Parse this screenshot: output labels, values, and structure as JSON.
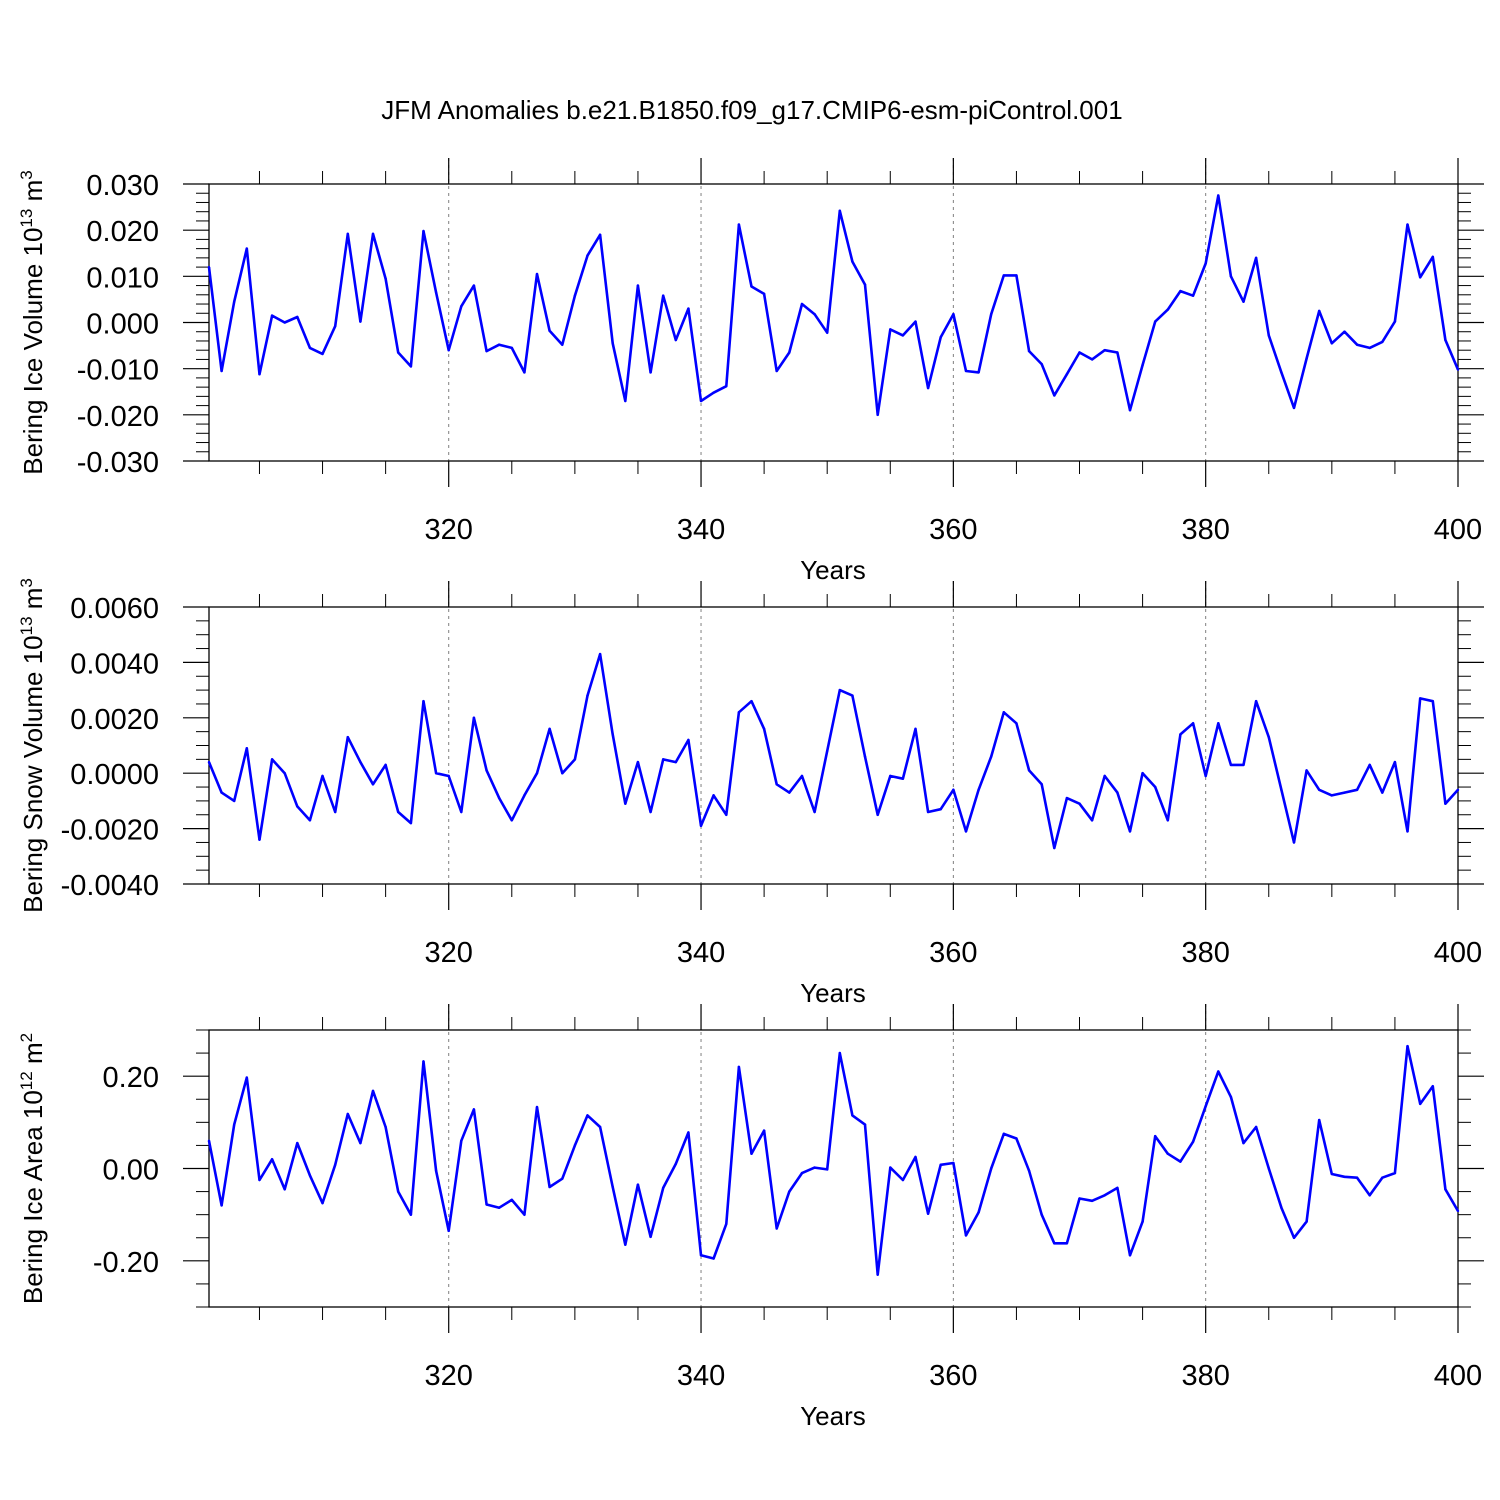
{
  "title": "JFM Anomalies b.e21.B1850.f09_g17.CMIP6-esm-piControl.001",
  "colors": {
    "series": "#0000ff",
    "axes": "#000000",
    "grid": "#808080"
  },
  "chart_data": [
    {
      "type": "line",
      "ylabel": "Bering Ice Volume",
      "ylabel_unit": "10",
      "ylabel_exp": "13",
      "ylabel_unit2": "m",
      "ylabel_exp2": "3",
      "xlabel": "Years",
      "xlim": [
        301,
        400
      ],
      "ylim": [
        -0.03,
        0.03
      ],
      "x_ticks": [
        320,
        340,
        360,
        380,
        400
      ],
      "x_tick_labels": [
        "320",
        "340",
        "360",
        "380",
        "400"
      ],
      "y_ticks": [
        -0.03,
        -0.02,
        -0.01,
        0.0,
        0.01,
        0.02,
        0.03
      ],
      "y_tick_labels": [
        "-0.030",
        "-0.020",
        "-0.010",
        "0.000",
        "0.010",
        "0.020",
        "0.030"
      ],
      "grid_x": [
        320,
        340,
        360,
        380
      ],
      "x_start": 301,
      "values": [
        0.012,
        -0.0105,
        0.0045,
        0.016,
        -0.0112,
        0.0015,
        0.0,
        0.0012,
        -0.0055,
        -0.0068,
        -0.0008,
        0.0192,
        0.0002,
        0.0192,
        0.0095,
        -0.0065,
        -0.0095,
        0.0198,
        0.0065,
        -0.006,
        0.0035,
        0.008,
        -0.0062,
        -0.0048,
        -0.0055,
        -0.0108,
        0.0105,
        -0.0018,
        -0.0048,
        0.0058,
        0.0145,
        0.019,
        -0.0045,
        -0.017,
        0.008,
        -0.0108,
        0.0058,
        -0.0038,
        0.003,
        -0.017,
        -0.0152,
        -0.0138,
        0.0212,
        0.0078,
        0.0062,
        -0.0105,
        -0.0065,
        0.004,
        0.0018,
        -0.0022,
        0.0242,
        0.0132,
        0.0082,
        -0.02,
        -0.0015,
        -0.0028,
        0.0002,
        -0.0142,
        -0.0032,
        0.0018,
        -0.0105,
        -0.0108,
        0.0018,
        0.0102,
        0.0102,
        -0.0062,
        -0.009,
        -0.0158,
        -0.0112,
        -0.0065,
        -0.008,
        -0.006,
        -0.0065,
        -0.019,
        -0.0092,
        0.0002,
        0.0028,
        0.0068,
        0.0058,
        0.0128,
        0.0275,
        0.01,
        0.0045,
        0.014,
        -0.0028,
        -0.0108,
        -0.0185,
        -0.0078,
        0.0025,
        -0.0045,
        -0.002,
        -0.0048,
        -0.0055,
        -0.0042,
        0.0002,
        0.0212,
        0.0098,
        0.0142,
        -0.0038,
        -0.0102
      ]
    },
    {
      "type": "line",
      "ylabel": "Bering Snow Volume",
      "ylabel_unit": "10",
      "ylabel_exp": "13",
      "ylabel_unit2": "m",
      "ylabel_exp2": "3",
      "xlabel": "Years",
      "xlim": [
        301,
        400
      ],
      "ylim": [
        -0.004,
        0.006
      ],
      "x_ticks": [
        320,
        340,
        360,
        380,
        400
      ],
      "x_tick_labels": [
        "320",
        "340",
        "360",
        "380",
        "400"
      ],
      "y_ticks": [
        -0.004,
        -0.002,
        0.0,
        0.002,
        0.004,
        0.006
      ],
      "y_tick_labels": [
        "-0.0040",
        "-0.0020",
        "0.0000",
        "0.0020",
        "0.0040",
        "0.0060"
      ],
      "grid_x": [
        320,
        340,
        360,
        380
      ],
      "x_start": 301,
      "values": [
        0.0004,
        -0.0007,
        -0.001,
        0.0009,
        -0.0024,
        0.0005,
        0.0,
        -0.0012,
        -0.0017,
        -0.0001,
        -0.0014,
        0.0013,
        0.0004,
        -0.0004,
        0.0003,
        -0.0014,
        -0.0018,
        0.0026,
        0.0,
        -0.0001,
        -0.0014,
        0.002,
        0.0001,
        -0.0009,
        -0.0017,
        -0.0008,
        0.0,
        0.0016,
        0.0,
        0.0005,
        0.0028,
        0.0043,
        0.0014,
        -0.0011,
        0.0004,
        -0.0014,
        0.0005,
        0.0004,
        0.0012,
        -0.0019,
        -0.0008,
        -0.0015,
        0.0022,
        0.0026,
        0.0016,
        -0.0004,
        -0.0007,
        -0.0001,
        -0.0014,
        0.0008,
        0.003,
        0.0028,
        0.0006,
        -0.0015,
        -0.0001,
        -0.0002,
        0.0016,
        -0.0014,
        -0.0013,
        -0.0006,
        -0.0021,
        -0.0006,
        0.0006,
        0.0022,
        0.0018,
        0.0001,
        -0.0004,
        -0.0027,
        -0.0009,
        -0.0011,
        -0.0017,
        -0.0001,
        -0.0007,
        -0.0021,
        0.0,
        -0.0005,
        -0.0017,
        0.0014,
        0.0018,
        -0.0001,
        0.0018,
        0.0003,
        0.0003,
        0.0026,
        0.0013,
        -0.0006,
        -0.0025,
        0.0001,
        -0.0006,
        -0.0008,
        -0.0007,
        -0.0006,
        0.0003,
        -0.0007,
        0.0004,
        -0.0021,
        0.0027,
        0.0026,
        -0.0011,
        -0.0006
      ]
    },
    {
      "type": "line",
      "ylabel": "Bering Ice Area",
      "ylabel_unit": "10",
      "ylabel_exp": "12",
      "ylabel_unit2": "m",
      "ylabel_exp2": "2",
      "xlabel": "Years",
      "xlim": [
        301,
        400
      ],
      "ylim": [
        -0.3,
        0.3
      ],
      "x_ticks": [
        320,
        340,
        360,
        380,
        400
      ],
      "x_tick_labels": [
        "320",
        "340",
        "360",
        "380",
        "400"
      ],
      "y_ticks": [
        -0.2,
        0.0,
        0.2
      ],
      "y_tick_labels": [
        "-0.20",
        "0.00",
        "0.20"
      ],
      "grid_x": [
        320,
        340,
        360,
        380
      ],
      "x_start": 301,
      "values": [
        0.06,
        -0.08,
        0.095,
        0.197,
        -0.025,
        0.02,
        -0.045,
        0.055,
        -0.015,
        -0.075,
        0.008,
        0.118,
        0.055,
        0.168,
        0.09,
        -0.05,
        -0.1,
        0.232,
        -0.005,
        -0.135,
        0.06,
        0.128,
        -0.078,
        -0.085,
        -0.068,
        -0.1,
        0.133,
        -0.04,
        -0.022,
        0.05,
        0.115,
        0.09,
        -0.04,
        -0.165,
        -0.035,
        -0.148,
        -0.042,
        0.01,
        0.078,
        -0.188,
        -0.195,
        -0.12,
        0.22,
        0.032,
        0.082,
        -0.13,
        -0.05,
        -0.01,
        0.002,
        -0.002,
        0.25,
        0.115,
        0.095,
        -0.23,
        0.002,
        -0.025,
        0.025,
        -0.098,
        0.008,
        0.012,
        -0.145,
        -0.095,
        0.0,
        0.075,
        0.065,
        -0.005,
        -0.1,
        -0.162,
        -0.162,
        -0.065,
        -0.07,
        -0.058,
        -0.042,
        -0.188,
        -0.115,
        0.07,
        0.032,
        0.015,
        0.058,
        0.135,
        0.21,
        0.155,
        0.055,
        0.09,
        0.0,
        -0.085,
        -0.15,
        -0.115,
        0.105,
        -0.012,
        -0.018,
        -0.02,
        -0.058,
        -0.02,
        -0.01,
        0.265,
        0.14,
        0.178,
        -0.045,
        -0.092
      ]
    }
  ]
}
